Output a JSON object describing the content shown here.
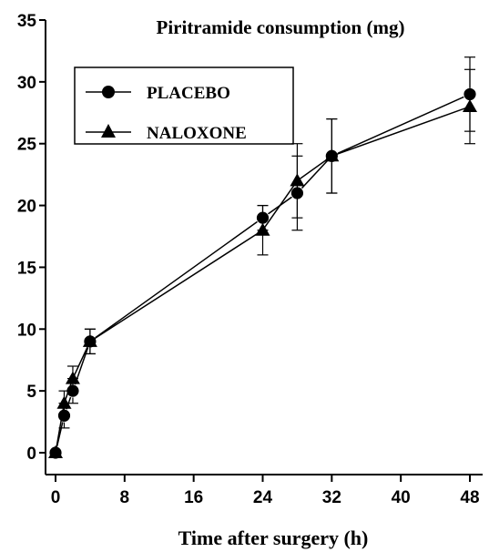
{
  "chart_data": {
    "type": "line",
    "title": "Piritramide consumption (mg)",
    "xlabel": "Time after surgery (h)",
    "ylabel": "",
    "xlim": [
      0,
      50
    ],
    "ylim": [
      0,
      35
    ],
    "x_ticks": [
      0,
      8,
      16,
      24,
      32,
      40,
      48
    ],
    "y_ticks": [
      0,
      5,
      10,
      15,
      20,
      25,
      30,
      35
    ],
    "grid": false,
    "legend_position": "top-left",
    "series": [
      {
        "name": "PLACEBO",
        "marker": "circle",
        "color": "#000000",
        "x": [
          0,
          1,
          2,
          4,
          24,
          28,
          32,
          48
        ],
        "y": [
          0,
          3,
          5,
          9,
          19,
          21,
          24,
          29
        ],
        "error": [
          0,
          1,
          1,
          1,
          1,
          3,
          3,
          3
        ]
      },
      {
        "name": "NALOXONE",
        "marker": "triangle",
        "color": "#000000",
        "x": [
          0,
          1,
          2,
          4,
          24,
          28,
          32,
          48
        ],
        "y": [
          0,
          4,
          6,
          9,
          18,
          22,
          24,
          28
        ],
        "error": [
          0,
          1,
          1,
          1,
          2,
          3,
          3,
          3
        ]
      }
    ]
  }
}
